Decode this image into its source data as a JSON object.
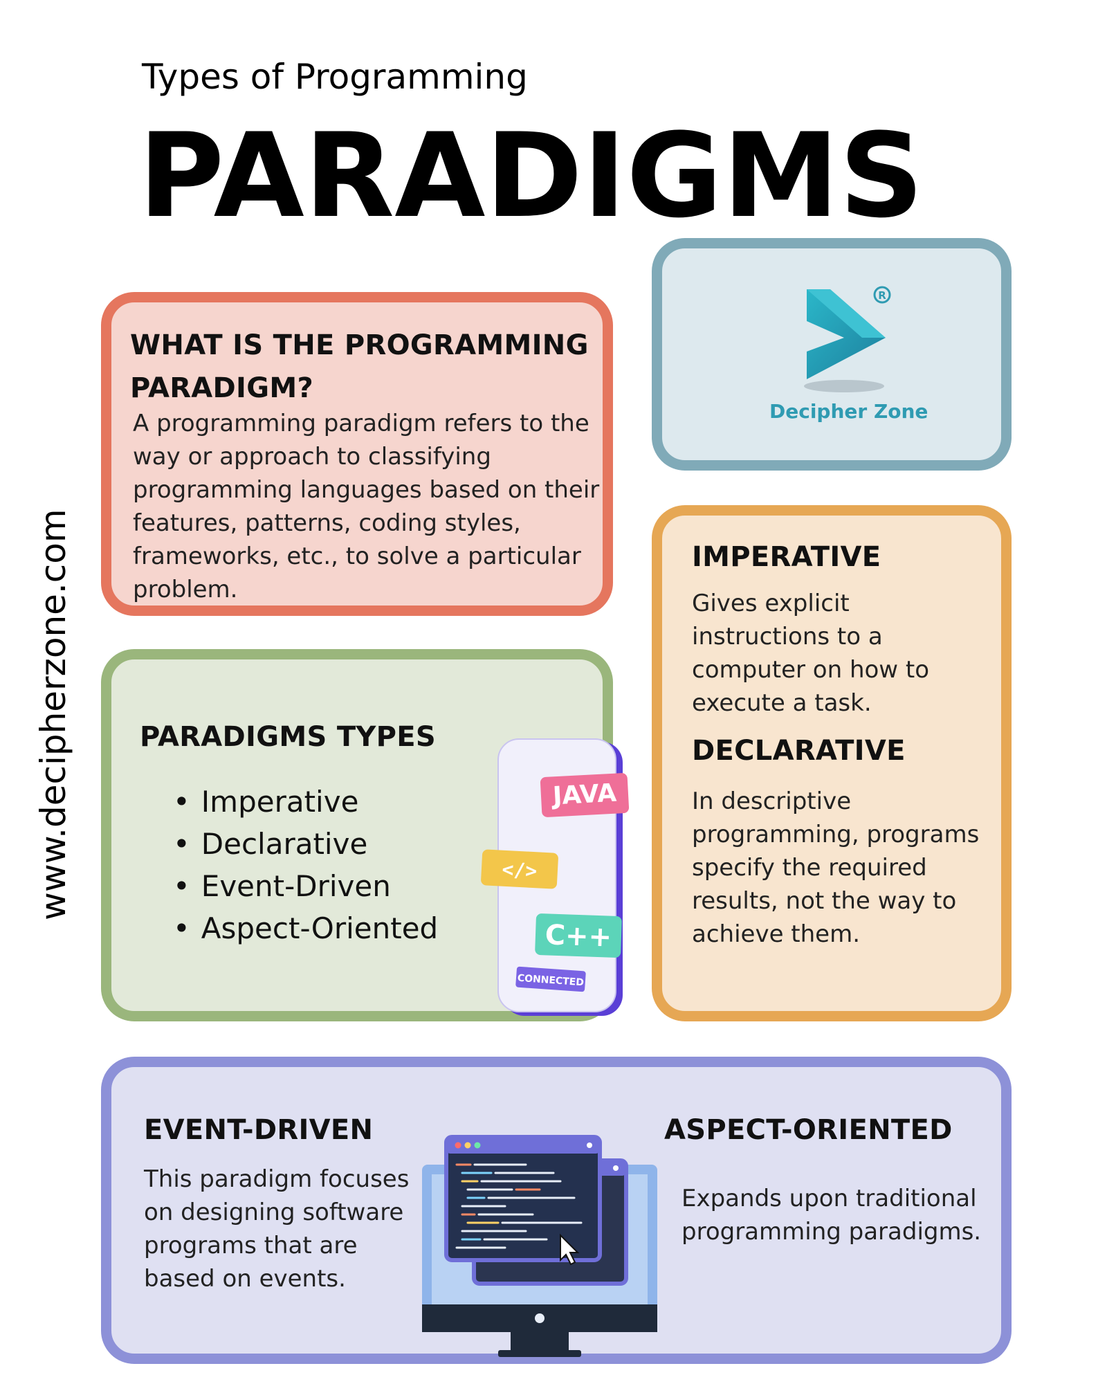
{
  "header": {
    "subtitle": "Types of Programming",
    "title": "PARADIGMS"
  },
  "sidebar_url": "www.decipherzone.com",
  "what_card": {
    "title": "WHAT IS THE PROGRAMMING PARADIGM?",
    "body": "A programming paradigm refers to the way or approach to classifying programming languages based on their features, patterns, coding styles, frameworks, etc., to solve a particular problem."
  },
  "logo": {
    "name": "Decipher Zone",
    "registered": "®"
  },
  "types_card": {
    "title": "PARADIGMS TYPES",
    "items": [
      "Imperative",
      "Declarative",
      "Event-Driven",
      "Aspect-Oriented"
    ]
  },
  "phone_illustration": {
    "tag_java": "JAVA",
    "tag_code": "</>",
    "tag_cpp": "C++",
    "badge": "CONNECTED",
    "colors": {
      "java": "#ef6f98",
      "code": "#f3c64a",
      "cpp": "#5cd4b9",
      "phone": "#6b4fe0"
    }
  },
  "imperative": {
    "title": "IMPERATIVE",
    "body": "Gives explicit instructions to a computer on how to execute a task."
  },
  "declarative": {
    "title": "DECLARATIVE",
    "body": "In descriptive programming, programs specify the required results, not the way to achieve them."
  },
  "event_driven": {
    "title": "EVENT-DRIVEN",
    "body": "This paradigm focuses on designing software programs that are based on events."
  },
  "aspect_oriented": {
    "title": "ASPECT-ORIENTED",
    "body": "Expands upon traditional programming paradigms."
  },
  "colors": {
    "what_border": "#e5765e",
    "what_bg": "#f6d5ce",
    "logo_border": "#80aab8",
    "logo_bg": "#dde9ee",
    "types_border": "#9ab67c",
    "types_bg": "#e2e9d9",
    "imp_border": "#e6a754",
    "imp_bg": "#f8e5cf",
    "event_border": "#8d91d8",
    "event_bg": "#dfe0f2",
    "logo_teal": "#2f9bb2"
  }
}
